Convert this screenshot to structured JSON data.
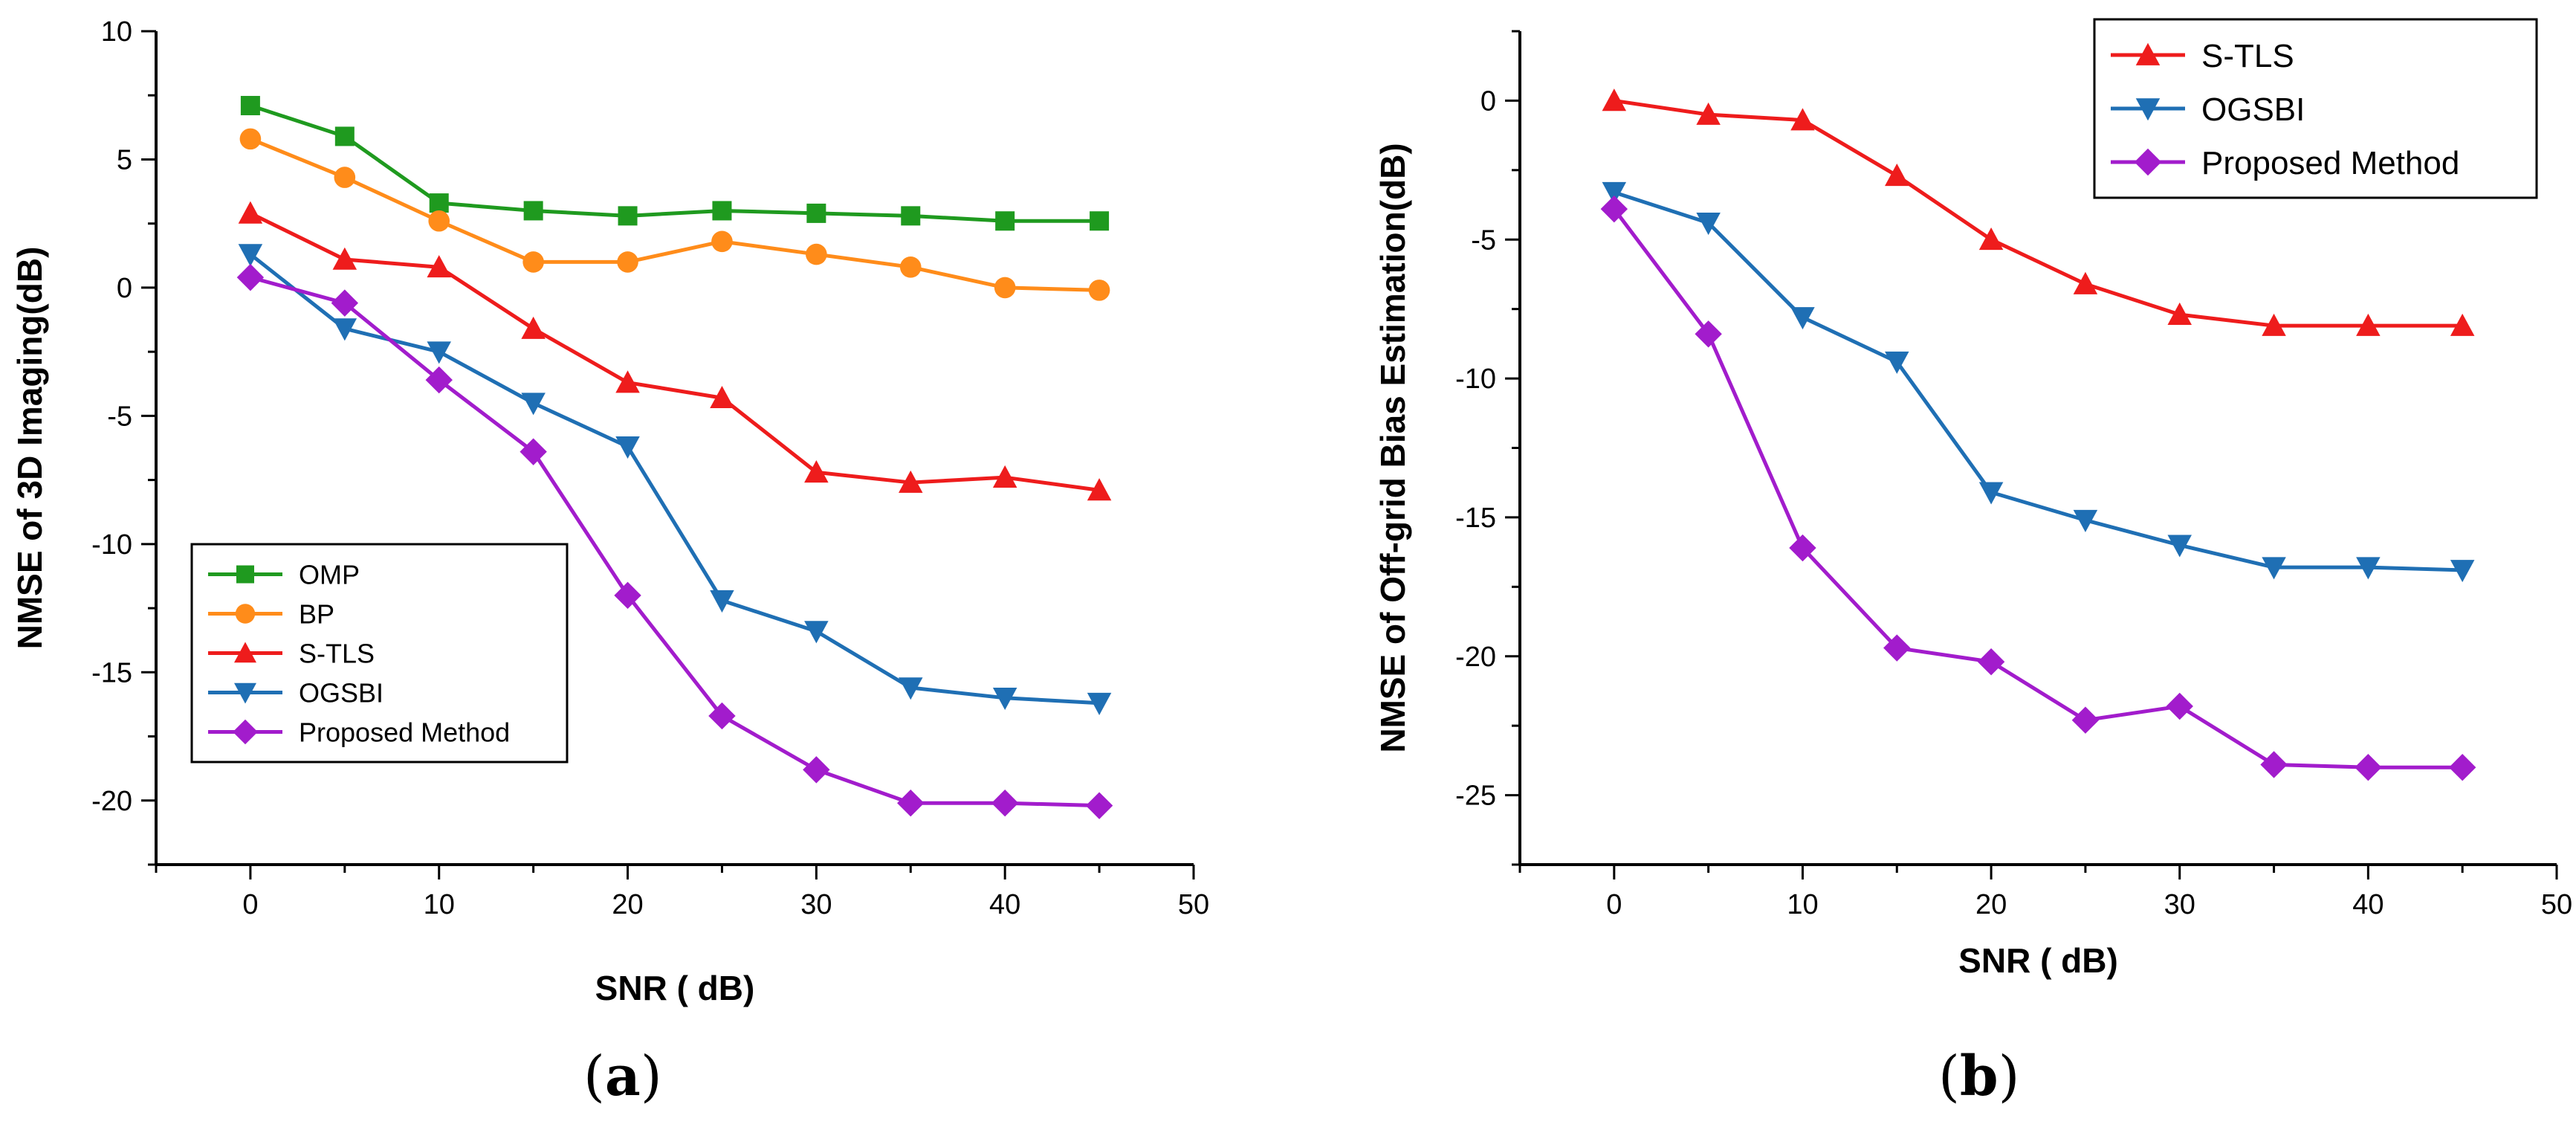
{
  "chart_data": [
    {
      "id": "a",
      "type": "line",
      "panel_label": "a",
      "xlabel": "SNR ( dB)",
      "ylabel": "NMSE of 3D Imaging(dB)",
      "xlim": [
        -5,
        50
      ],
      "ylim": [
        -22.5,
        10
      ],
      "xticks": [
        0,
        10,
        20,
        30,
        40,
        50
      ],
      "yticks": [
        10,
        5,
        0,
        -5,
        -10,
        -15,
        -20
      ],
      "grid": false,
      "legend_position": "lower-left",
      "x": [
        0,
        5,
        10,
        15,
        20,
        25,
        30,
        35,
        40,
        45
      ],
      "series": [
        {
          "name": "OMP",
          "color": "#1f9a1f",
          "marker": "square",
          "values": [
            7.1,
            5.9,
            3.3,
            3.0,
            2.8,
            3.0,
            2.9,
            2.8,
            2.6,
            2.6
          ]
        },
        {
          "name": "BP",
          "color": "#ff8c1a",
          "marker": "circle",
          "values": [
            5.8,
            4.3,
            2.6,
            1.0,
            1.0,
            1.8,
            1.3,
            0.8,
            0.0,
            -0.1
          ]
        },
        {
          "name": "S-TLS",
          "color": "#ee1c1c",
          "marker": "triangle-up",
          "values": [
            2.9,
            1.1,
            0.8,
            -1.6,
            -3.7,
            -4.3,
            -7.2,
            -7.6,
            -7.4,
            -7.9
          ]
        },
        {
          "name": "OGSBI",
          "color": "#1f6fb4",
          "marker": "triangle-down",
          "values": [
            1.3,
            -1.6,
            -2.5,
            -4.5,
            -6.2,
            -12.2,
            -13.4,
            -15.6,
            -16.0,
            -16.2
          ]
        },
        {
          "name": "Proposed Method",
          "color": "#a21ccc",
          "marker": "diamond",
          "values": [
            0.4,
            -0.6,
            -3.6,
            -6.4,
            -12.0,
            -16.7,
            -18.8,
            -20.1,
            -20.1,
            -20.2
          ]
        }
      ]
    },
    {
      "id": "b",
      "type": "line",
      "panel_label": "b",
      "xlabel": "SNR ( dB)",
      "ylabel": "NMSE of Off-grid Bias Estimation(dB)",
      "xlim": [
        -5,
        50
      ],
      "ylim": [
        -27.5,
        2.5
      ],
      "xticks": [
        0,
        10,
        20,
        30,
        40,
        50
      ],
      "yticks": [
        0,
        -5,
        -10,
        -15,
        -20,
        -25
      ],
      "grid": false,
      "legend_position": "top-right",
      "x": [
        0,
        5,
        10,
        15,
        20,
        25,
        30,
        35,
        40,
        45
      ],
      "series": [
        {
          "name": "S-TLS",
          "color": "#ee1c1c",
          "marker": "triangle-up",
          "values": [
            0.0,
            -0.5,
            -0.7,
            -2.7,
            -5.0,
            -6.6,
            -7.7,
            -8.1,
            -8.1,
            -8.1
          ]
        },
        {
          "name": "OGSBI",
          "color": "#1f6fb4",
          "marker": "triangle-down",
          "values": [
            -3.3,
            -4.4,
            -7.8,
            -9.4,
            -14.1,
            -15.1,
            -16.0,
            -16.8,
            -16.8,
            -16.9
          ]
        },
        {
          "name": "Proposed Method",
          "color": "#a21ccc",
          "marker": "diamond",
          "values": [
            -3.9,
            -8.4,
            -16.1,
            -19.7,
            -20.2,
            -22.3,
            -21.8,
            -23.9,
            -24.0,
            -24.0
          ]
        }
      ]
    }
  ]
}
